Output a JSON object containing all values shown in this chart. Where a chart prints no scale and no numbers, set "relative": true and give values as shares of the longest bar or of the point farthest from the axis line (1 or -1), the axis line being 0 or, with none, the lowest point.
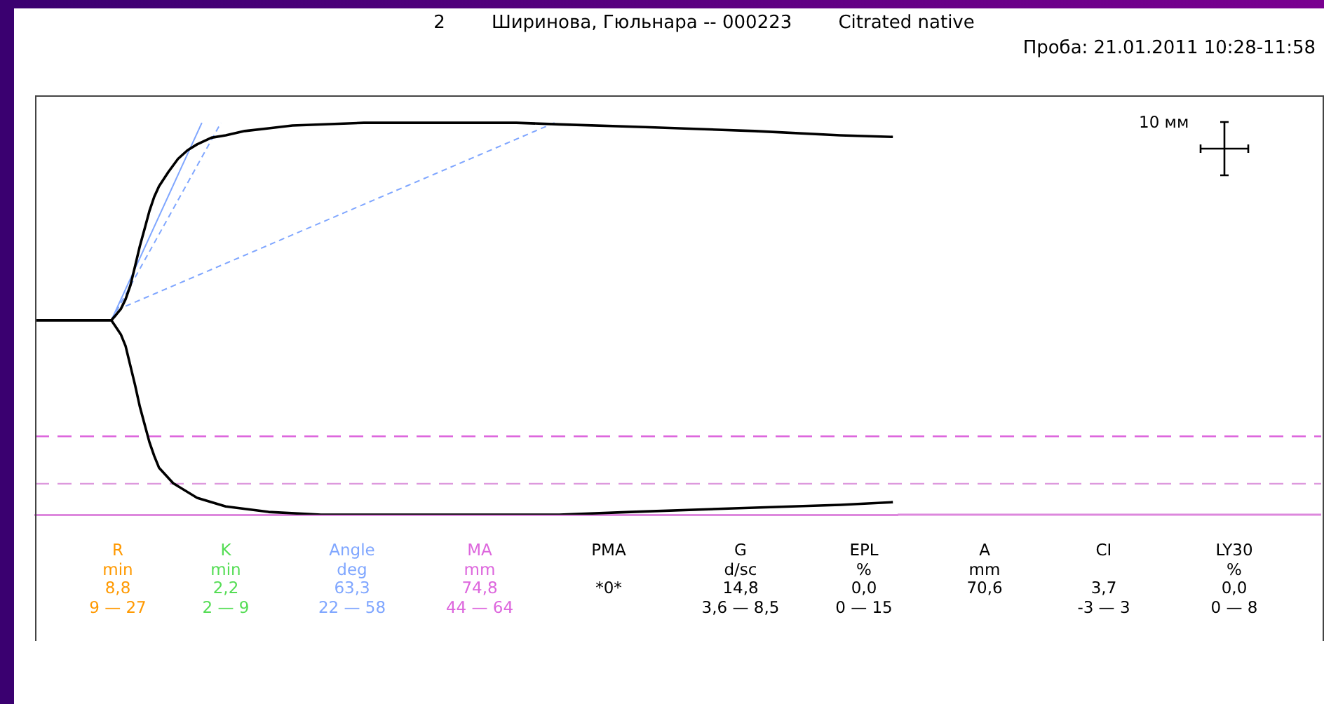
{
  "chart_data": {
    "type": "line",
    "title": "2        Ширинова, Гюльнара -- 000223        Citrated native",
    "subtitle": "Проба: 21.01.2011 10:28-11:58",
    "relative": true,
    "legend": false,
    "grid": false,
    "marker": "none",
    "categories": [
      null,
      null,
      null,
      null,
      null,
      null,
      null,
      null,
      null,
      null,
      null,
      null,
      null,
      null,
      null,
      null,
      null,
      null,
      null,
      null,
      null,
      null,
      null,
      null,
      null,
      null,
      null,
      null,
      null,
      null,
      null,
      null,
      null,
      null,
      null,
      null,
      null,
      null,
      null,
      null,
      null,
      null,
      null,
      null,
      null,
      null,
      null,
      null,
      null,
      null,
      null,
      null,
      null,
      null,
      null,
      null,
      null,
      null,
      null,
      null,
      null,
      null,
      null,
      null,
      null,
      null,
      null,
      null,
      null,
      null,
      null,
      null,
      null,
      null,
      null,
      null,
      null,
      null,
      null,
      null,
      null,
      null,
      null,
      null,
      null,
      null,
      null,
      null,
      null,
      null,
      null,
      null,
      null,
      null,
      null,
      null,
      null,
      null,
      null,
      null,
      null,
      null,
      null,
      null,
      null,
      null,
      null,
      null,
      null,
      null,
      null,
      null,
      null,
      null,
      null,
      null,
      null,
      null,
      null,
      null,
      null,
      null,
      null,
      null,
      null,
      null,
      null,
      null,
      null,
      null,
      null,
      null,
      null,
      null,
      null,
      null,
      null,
      null,
      null,
      null,
      null,
      null,
      null,
      null,
      null,
      null,
      null,
      null,
      null,
      null,
      null,
      null,
      null,
      null,
      null,
      null,
      null,
      null,
      null,
      null,
      null,
      null,
      null,
      null,
      null,
      null,
      null,
      null,
      null,
      null,
      null,
      null,
      null,
      null,
      null,
      null,
      null,
      null,
      null,
      null,
      null,
      null
    ],
    "series": [
      {
        "color": "#000000",
        "line_style": "solid",
        "values": [
          0.496,
          null,
          null,
          null,
          null,
          null,
          null,
          null,
          null,
          null,
          null,
          null,
          null,
          null,
          null,
          null,
          0.496,
          0.51,
          0.525,
          0.55,
          0.585,
          0.635,
          0.686,
          0.73,
          0.775,
          0.811,
          0.838,
          null,
          0.875,
          null,
          0.908,
          null,
          0.93,
          null,
          0.945,
          null,
          null,
          0.962,
          null,
          null,
          0.968,
          null,
          null,
          null,
          0.979,
          null,
          null,
          null,
          null,
          0.986,
          null,
          null,
          null,
          null,
          0.993,
          null,
          null,
          null,
          null,
          null,
          null,
          null,
          null,
          null,
          null,
          null,
          null,
          null,
          null,
          1,
          null,
          null,
          null,
          null,
          null,
          null,
          null,
          null,
          null,
          null,
          null,
          null,
          null,
          null,
          null,
          null,
          null,
          null,
          null,
          null,
          null,
          null,
          null,
          null,
          null,
          null,
          null,
          null,
          null,
          null,
          null,
          1,
          null,
          null,
          null,
          null,
          null,
          null,
          null,
          null,
          0.996,
          null,
          null,
          null,
          null,
          null,
          null,
          null,
          null,
          null,
          null,
          null,
          null,
          null,
          null,
          null,
          null,
          null,
          0.989,
          null,
          null,
          null,
          null,
          null,
          null,
          null,
          null,
          null,
          null,
          null,
          null,
          null,
          null,
          null,
          null,
          null,
          null,
          null,
          null,
          null,
          null,
          0.979,
          null,
          null,
          null,
          null,
          null,
          null,
          null,
          null,
          null,
          null,
          null,
          null,
          null,
          null,
          null,
          null,
          null,
          0.968,
          null,
          null,
          null,
          null,
          null,
          null,
          null,
          null,
          null,
          null,
          0.964,
          null
        ]
      },
      {
        "color": "#000000",
        "line_style": "solid",
        "values": [
          0.496,
          null,
          null,
          null,
          null,
          null,
          null,
          null,
          null,
          null,
          null,
          null,
          null,
          null,
          null,
          null,
          0.496,
          0.478,
          0.46,
          0.43,
          0.38,
          0.33,
          0.275,
          0.23,
          0.185,
          0.15,
          0.12,
          null,
          null,
          0.08,
          null,
          null,
          null,
          null,
          0.043,
          null,
          null,
          null,
          null,
          null,
          0.021,
          null,
          null,
          null,
          null,
          null,
          null,
          null,
          null,
          0.007,
          null,
          null,
          null,
          null,
          null,
          null,
          null,
          null,
          null,
          null,
          0,
          null,
          null,
          null,
          null,
          null,
          null,
          null,
          null,
          null,
          null,
          null,
          null,
          null,
          null,
          null,
          null,
          null,
          null,
          null,
          null,
          0,
          null,
          null,
          null,
          null,
          null,
          null,
          null,
          null,
          null,
          null,
          null,
          null,
          null,
          null,
          null,
          null,
          null,
          null,
          null,
          null,
          null,
          null,
          null,
          null,
          null,
          null,
          null,
          null,
          0,
          null,
          null,
          null,
          null,
          null,
          null,
          null,
          null,
          null,
          null,
          null,
          null,
          null,
          null,
          0.007,
          null,
          null,
          null,
          null,
          null,
          null,
          null,
          null,
          null,
          null,
          null,
          null,
          null,
          null,
          null,
          null,
          null,
          null,
          null,
          null,
          null,
          null,
          null,
          null,
          null,
          0.018,
          null,
          null,
          null,
          null,
          null,
          null,
          null,
          null,
          null,
          null,
          null,
          null,
          null,
          null,
          null,
          null,
          null,
          0.025,
          null,
          null,
          null,
          null,
          null,
          null,
          null,
          null,
          null,
          null,
          0.032,
          null
        ]
      },
      {
        "color": "#7fa6ff",
        "line_style": "solid",
        "values": [
          null,
          null,
          null,
          null,
          null,
          null,
          null,
          null,
          null,
          null,
          null,
          null,
          null,
          null,
          null,
          null,
          0.496,
          null,
          null,
          null,
          null,
          null,
          null,
          null,
          null,
          null,
          null,
          null,
          null,
          null,
          null,
          null,
          null,
          null,
          null,
          1,
          null,
          null,
          null,
          null,
          null,
          null,
          null,
          null,
          null,
          null,
          null,
          null,
          null,
          null,
          null,
          null,
          null,
          null,
          null,
          null,
          null,
          null,
          null,
          null,
          null,
          null,
          null,
          null,
          null,
          null,
          null,
          null,
          null,
          null,
          null,
          null,
          null,
          null,
          null,
          null,
          null,
          null,
          null,
          null,
          null,
          null,
          null,
          null,
          null,
          null,
          null,
          null,
          null,
          null,
          null,
          null,
          null,
          null,
          null,
          null,
          null,
          null,
          null,
          null,
          null,
          null,
          null,
          null,
          null,
          null,
          null,
          null,
          null,
          null,
          null,
          null,
          null,
          null,
          null,
          null,
          null,
          null,
          null,
          null,
          null,
          null,
          null,
          null,
          null,
          null,
          null,
          null,
          null,
          null,
          null,
          null,
          null,
          null,
          null,
          null,
          null,
          null,
          null,
          null,
          null,
          null,
          null,
          null,
          null,
          null,
          null,
          null,
          null,
          null,
          null,
          null,
          null,
          null,
          null,
          null,
          null,
          null,
          null,
          null,
          null,
          null,
          null,
          null,
          null,
          null,
          null,
          null,
          null,
          null,
          null,
          null,
          null,
          null,
          null,
          null,
          null,
          null,
          null,
          null,
          null,
          null
        ]
      },
      {
        "color": "#7fa6ff",
        "line_style": "dashed",
        "values": [
          null,
          null,
          null,
          null,
          null,
          null,
          null,
          null,
          null,
          null,
          null,
          null,
          null,
          null,
          null,
          null,
          0.496,
          null,
          null,
          null,
          null,
          null,
          null,
          null,
          null,
          null,
          null,
          null,
          null,
          null,
          null,
          null,
          null,
          null,
          null,
          null,
          null,
          null,
          null,
          1,
          null,
          null,
          null,
          null,
          null,
          null,
          null,
          null,
          null,
          null,
          null,
          null,
          null,
          null,
          null,
          null,
          null,
          null,
          null,
          null,
          null,
          null,
          null,
          null,
          null,
          null,
          null,
          null,
          null,
          null,
          null,
          null,
          null,
          null,
          null,
          null,
          null,
          null,
          null,
          null,
          null,
          null,
          null,
          null,
          null,
          null,
          null,
          null,
          null,
          null,
          null,
          null,
          null,
          null,
          null,
          null,
          null,
          null,
          null,
          null,
          null,
          null,
          null,
          null,
          null,
          null,
          null,
          null,
          null,
          null,
          null,
          null,
          null,
          null,
          null,
          null,
          null,
          null,
          null,
          null,
          null,
          null,
          null,
          null,
          null,
          null,
          null,
          null,
          null,
          null,
          null,
          null,
          null,
          null,
          null,
          null,
          null,
          null,
          null,
          null,
          null,
          null,
          null,
          null,
          null,
          null,
          null,
          null,
          null,
          null,
          null,
          null,
          null,
          null,
          null,
          null,
          null,
          null,
          null,
          null,
          null,
          null,
          null,
          null,
          null,
          null,
          null,
          null,
          null,
          null,
          null,
          null,
          null,
          null,
          null,
          null,
          null,
          null,
          null,
          null,
          null,
          null
        ]
      },
      {
        "color": "#7fa6ff",
        "line_style": "dashed",
        "values": [
          null,
          null,
          null,
          null,
          null,
          null,
          null,
          null,
          null,
          null,
          null,
          null,
          null,
          null,
          null,
          null,
          null,
          null,
          null,
          0.532,
          null,
          null,
          null,
          null,
          null,
          null,
          null,
          null,
          null,
          null,
          null,
          null,
          null,
          null,
          null,
          null,
          null,
          null,
          null,
          null,
          null,
          null,
          null,
          null,
          null,
          null,
          null,
          null,
          null,
          null,
          null,
          null,
          null,
          null,
          null,
          null,
          null,
          null,
          null,
          null,
          null,
          null,
          null,
          null,
          null,
          null,
          null,
          null,
          null,
          null,
          null,
          null,
          null,
          null,
          null,
          null,
          null,
          null,
          null,
          null,
          null,
          null,
          null,
          null,
          null,
          null,
          null,
          null,
          null,
          null,
          null,
          null,
          null,
          null,
          null,
          null,
          null,
          null,
          null,
          null,
          null,
          null,
          null,
          null,
          null,
          null,
          null,
          null,
          null,
          1,
          null,
          null,
          null,
          null,
          null,
          null,
          null,
          null,
          null,
          null,
          null,
          null,
          null,
          null,
          null,
          null,
          null,
          null,
          null,
          null,
          null,
          null,
          null,
          null,
          null,
          null,
          null,
          null,
          null,
          null,
          null,
          null,
          null,
          null,
          null,
          null,
          null,
          null,
          null,
          null,
          null,
          null,
          null,
          null,
          null,
          null,
          null,
          null,
          null,
          null,
          null,
          null,
          null,
          null,
          null,
          null,
          null,
          null,
          null,
          null,
          null,
          null,
          null,
          null,
          null,
          null,
          null,
          null,
          null,
          null,
          null,
          null
        ]
      }
    ],
    "ref_lines": [
      {
        "axis": "y",
        "value": 0.2,
        "color": "#dd66dd",
        "line_style": "dashed"
      },
      {
        "axis": "y",
        "value": 0.079,
        "color": "#dd99dd",
        "line_style": "dashed"
      }
    ],
    "annotations": [
      "R\nmin\n8,8\n9 — 27",
      "K\nmin\n2,2\n2 — 9",
      "Angle\ndeg\n63,3\n22 — 58",
      "MA\nmm\n74,8\n44 — 64",
      "PMA\n\n*0*",
      "G\nd/sc\n14,8\n3,6 — 8,5",
      "EPL\n%\n0,0\n0 — 15",
      "A\nmm\n70,6",
      "CI\n\n3,7\n-3 — 3",
      "LY30\n%\n0,0\n0 — 8",
      "10 мм"
    ]
  }
}
